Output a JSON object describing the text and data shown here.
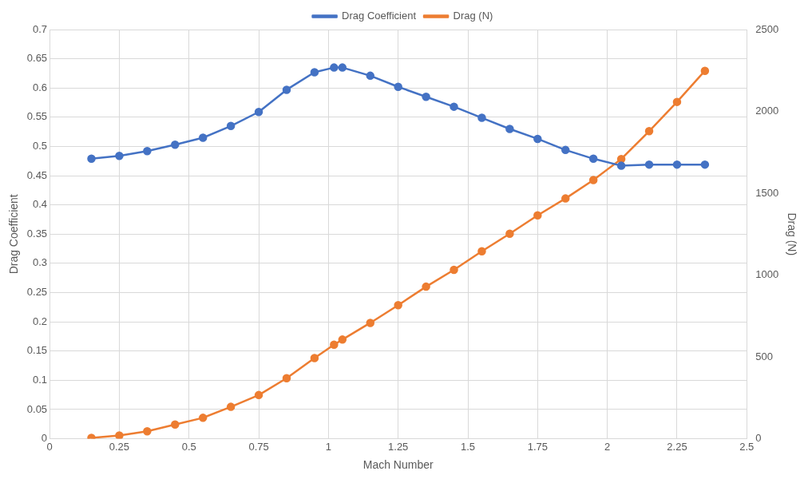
{
  "chart_data": {
    "type": "line",
    "xlabel": "Mach Number",
    "ylabel": "Drag Coefficient",
    "y2label": "Drag (N)",
    "x": [
      0.15,
      0.25,
      0.35,
      0.45,
      0.55,
      0.65,
      0.75,
      0.85,
      0.95,
      1.02,
      1.05,
      1.15,
      1.25,
      1.35,
      1.45,
      1.55,
      1.65,
      1.75,
      1.85,
      1.95,
      2.05,
      2.15,
      2.25,
      2.35
    ],
    "series": [
      {
        "name": "Drag Coefficient",
        "color": "#4472c4",
        "values": [
          0.479,
          0.484,
          0.492,
          0.503,
          0.515,
          0.535,
          0.559,
          0.597,
          0.627,
          0.635,
          0.635,
          0.621,
          0.602,
          0.585,
          0.568,
          0.549,
          0.53,
          0.513,
          0.494,
          0.479,
          0.467,
          0.469,
          0.469,
          0.469
        ]
      },
      {
        "name": "Drag (N)",
        "color": "#ed7d31",
        "axis": "y2",
        "values": [
          5,
          20,
          46,
          87,
          128,
          195,
          267,
          370,
          493,
          575,
          606,
          708,
          816,
          929,
          1032,
          1145,
          1253,
          1365,
          1468,
          1581,
          1709,
          1879,
          2058,
          2248
        ]
      }
    ],
    "xlim": [
      0,
      2.5
    ],
    "xticks": [
      0,
      0.25,
      0.5,
      0.75,
      1,
      1.25,
      1.5,
      1.75,
      2,
      2.25,
      2.5
    ],
    "ylim": [
      0,
      0.7
    ],
    "yticks": [
      0,
      0.05,
      0.1,
      0.15,
      0.2,
      0.25,
      0.3,
      0.35,
      0.4,
      0.45,
      0.5,
      0.55,
      0.6,
      0.65,
      0.7
    ],
    "y2lim": [
      0,
      2500
    ],
    "y2ticks": [
      0,
      500,
      1000,
      1500,
      2000,
      2500
    ],
    "grid": true,
    "legend": "top",
    "marker": "circle",
    "line_style": "solid"
  }
}
